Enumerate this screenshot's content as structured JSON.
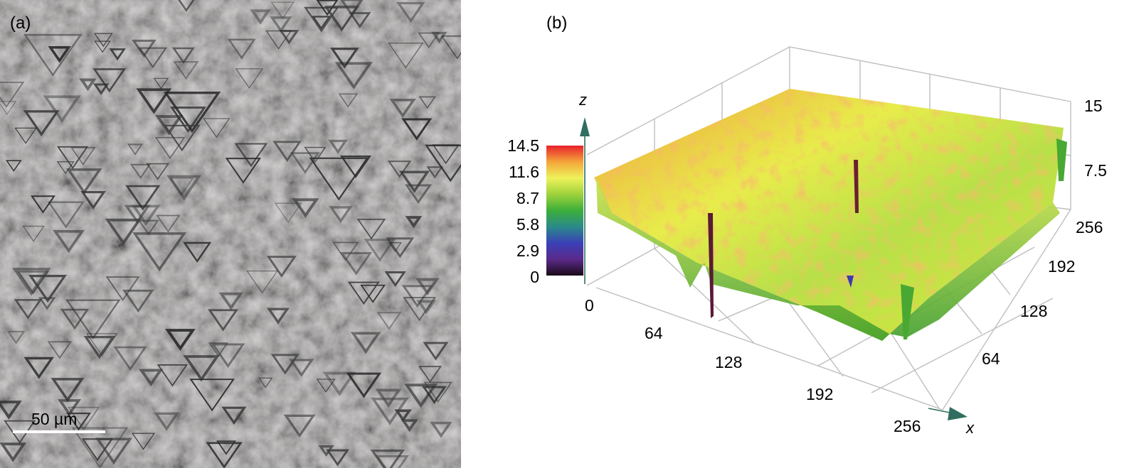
{
  "panel_a": {
    "label": "(a)",
    "scale_bar": "50 µm"
  },
  "panel_b": {
    "label": "(b)",
    "colorbar": {
      "ticks": [
        "14.5",
        "11.6",
        "8.7",
        "5.8",
        "2.9",
        "0"
      ],
      "stops": [
        "#e8202a",
        "#f4a53a",
        "#eef25a",
        "#9ed23c",
        "#3cae3a",
        "#2a8a8a",
        "#3a40b8",
        "#5a2a8a",
        "#1a0a18"
      ]
    },
    "chart_data": {
      "type": "surface",
      "axes": {
        "x": {
          "label": "x",
          "ticks": [
            "0",
            "64",
            "128",
            "192",
            "256"
          ],
          "range": [
            0,
            256
          ]
        },
        "y": {
          "label": "",
          "ticks": [
            "64",
            "128",
            "192",
            "256"
          ],
          "range": [
            0,
            256
          ]
        },
        "z": {
          "label": "z",
          "ticks": [
            "7.5",
            "15"
          ],
          "range": [
            0,
            15
          ]
        }
      },
      "grid": true
    }
  }
}
